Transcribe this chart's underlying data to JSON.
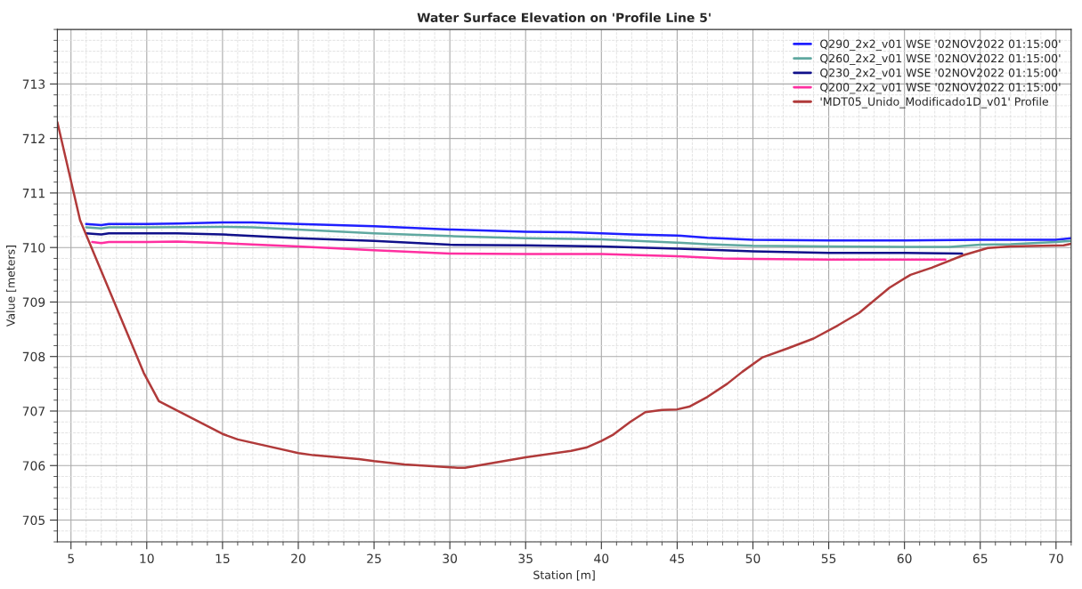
{
  "chart_data": {
    "type": "line",
    "title": "Water Surface Elevation on 'Profile Line 5'",
    "xlabel": "Station [m]",
    "ylabel": "Value [meters]",
    "xlim": [
      4.1,
      71
    ],
    "ylim": [
      704.6,
      714
    ],
    "xticks": [
      5,
      10,
      15,
      20,
      25,
      30,
      35,
      40,
      45,
      50,
      55,
      60,
      65,
      70
    ],
    "yticks": [
      705,
      706,
      707,
      708,
      709,
      710,
      711,
      712,
      713
    ],
    "grid": true,
    "legend": "top right",
    "line_style": "solid",
    "marker": "none",
    "series": [
      {
        "name": "Q290_2x2_v01 WSE '02NOV2022 01:15:00'",
        "color": "#1f1fff",
        "x": [
          6,
          7,
          7.5,
          10,
          12,
          15,
          17,
          20,
          25,
          30,
          35,
          38,
          40,
          42,
          45,
          47,
          50,
          55,
          60,
          65,
          70,
          71
        ],
        "values": [
          710.43,
          710.41,
          710.43,
          710.43,
          710.44,
          710.46,
          710.46,
          710.43,
          710.39,
          710.33,
          710.29,
          710.28,
          710.26,
          710.24,
          710.22,
          710.18,
          710.14,
          710.13,
          710.13,
          710.14,
          710.14,
          710.17
        ]
      },
      {
        "name": "Q260_2x2_v01 WSE '02NOV2022 01:15:00'",
        "color": "#5fa8a0",
        "x": [
          6,
          7,
          7.5,
          10,
          15,
          17,
          20,
          25,
          30,
          35,
          40,
          45,
          47,
          50,
          55,
          60,
          63,
          65,
          67,
          70,
          71
        ],
        "values": [
          710.37,
          710.35,
          710.37,
          710.37,
          710.38,
          710.37,
          710.33,
          710.26,
          710.21,
          710.17,
          710.15,
          710.09,
          710.06,
          710.03,
          710.02,
          710.01,
          710.01,
          710.05,
          710.06,
          710.1,
          710.12
        ]
      },
      {
        "name": "Q230_2x2_v01 WSE '02NOV2022 01:15:00'",
        "color": "#10108a",
        "x": [
          6,
          7,
          7.5,
          10,
          12,
          15,
          20,
          25,
          30,
          35,
          40,
          45,
          48,
          50,
          55,
          60,
          63.8
        ],
        "values": [
          710.26,
          710.24,
          710.26,
          710.26,
          710.26,
          710.24,
          710.17,
          710.12,
          710.05,
          710.04,
          710.02,
          709.98,
          709.95,
          709.93,
          709.9,
          709.9,
          709.89
        ]
      },
      {
        "name": "Q200_2x2_v01 WSE '02NOV2022 01:15:00'",
        "color": "#ff2fa0",
        "x": [
          6.4,
          7,
          7.5,
          10,
          12,
          15,
          20,
          25,
          30,
          35,
          40,
          45,
          48,
          50,
          55,
          60,
          62.7
        ],
        "values": [
          710.1,
          710.08,
          710.1,
          710.1,
          710.11,
          710.08,
          710.02,
          709.95,
          709.89,
          709.88,
          709.88,
          709.84,
          709.8,
          709.79,
          709.78,
          709.78,
          709.78
        ]
      },
      {
        "name": "'MDT05_Unido_Modificado1D_v01' Profile",
        "color": "#b03a3a",
        "x": [
          4.1,
          5.6,
          9.8,
          10.8,
          15,
          16,
          20,
          21,
          24,
          25,
          27,
          30.5,
          31,
          35,
          38,
          39,
          40,
          40.8,
          41.9,
          42.9,
          44,
          45,
          45.8,
          47,
          48.3,
          49.3,
          50.6,
          52.3,
          54,
          55.6,
          57,
          59,
          60.4,
          61.8,
          63.9,
          65.5,
          67,
          70.5,
          71
        ],
        "values": [
          712.3,
          710.5,
          707.7,
          707.18,
          706.58,
          706.48,
          706.23,
          706.19,
          706.12,
          706.08,
          706.02,
          705.96,
          705.96,
          706.15,
          706.27,
          706.33,
          706.45,
          706.57,
          706.8,
          706.98,
          707.02,
          707.03,
          707.08,
          707.26,
          707.5,
          707.72,
          707.98,
          708.15,
          708.33,
          708.57,
          708.8,
          709.26,
          709.5,
          709.63,
          709.86,
          709.99,
          710.02,
          710.04,
          710.07
        ]
      }
    ]
  }
}
